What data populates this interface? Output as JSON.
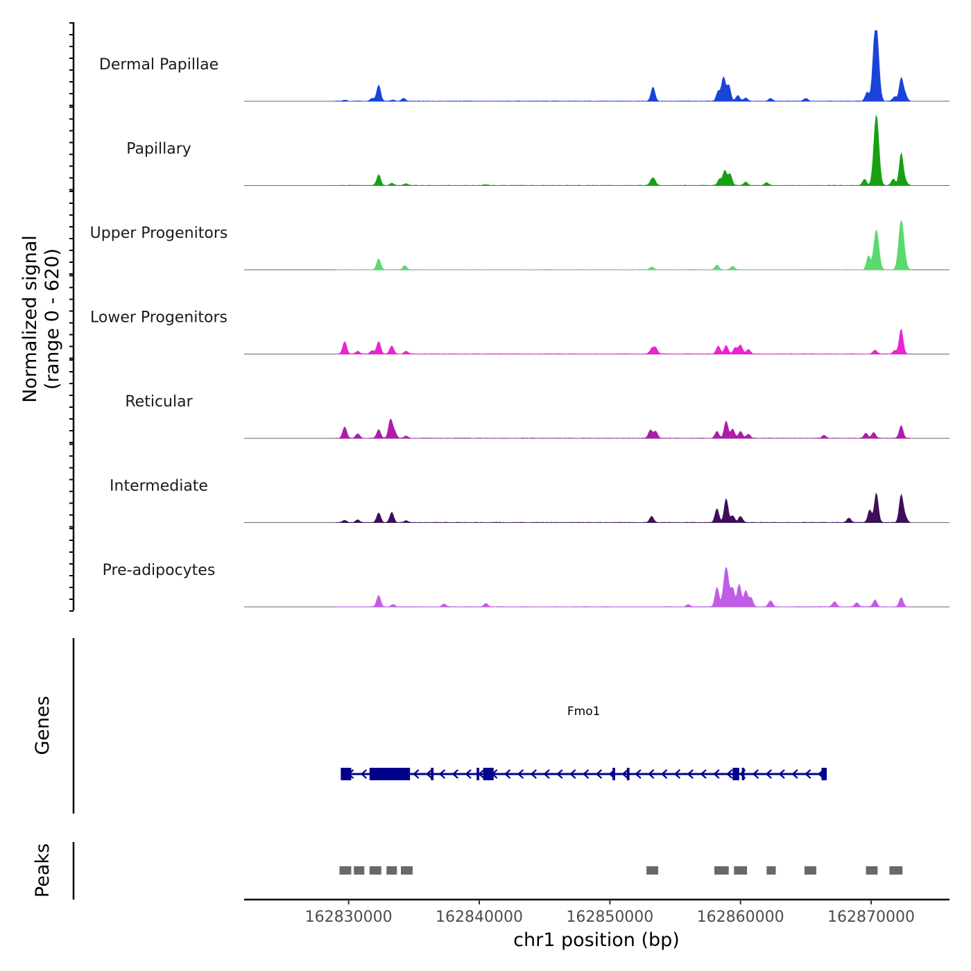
{
  "chart_data": {
    "type": "area",
    "title": "",
    "ylabel_signal": "Normalized signal\n(range 0 - 620)",
    "ylabel_signal_line1": "Normalized signal",
    "ylabel_signal_line2": "(range 0 - 620)",
    "ylabel_genes": "Genes",
    "ylabel_peaks": "Peaks",
    "xlabel": "chr1 position (bp)",
    "xlim": [
      162822000,
      162876000
    ],
    "xticks": [
      162830000,
      162840000,
      162850000,
      162860000,
      162870000
    ],
    "xtick_labels": [
      "162830000",
      "162840000",
      "162850000",
      "162860000",
      "162870000"
    ],
    "signal_range": [
      0,
      620
    ],
    "tracks": [
      {
        "name": "Dermal Papillae",
        "color": "#1a44d8",
        "peaks": [
          [
            162829700,
            8
          ],
          [
            162832300,
            140
          ],
          [
            162831800,
            25
          ],
          [
            162834200,
            25
          ],
          [
            162833400,
            10
          ],
          [
            162853300,
            125
          ],
          [
            162858700,
            210
          ],
          [
            162858300,
            85
          ],
          [
            162859100,
            140
          ],
          [
            162859800,
            50
          ],
          [
            162860400,
            30
          ],
          [
            162862300,
            25
          ],
          [
            162865000,
            25
          ],
          [
            162869700,
            80
          ],
          [
            162870200,
            150
          ],
          [
            162870400,
            620
          ],
          [
            162871800,
            40
          ],
          [
            162872300,
            200
          ],
          [
            162872600,
            60
          ]
        ]
      },
      {
        "name": "Papillary",
        "color": "#17a012",
        "peaks": [
          [
            162832300,
            95
          ],
          [
            162833300,
            20
          ],
          [
            162834400,
            15
          ],
          [
            162840500,
            8
          ],
          [
            162853200,
            45
          ],
          [
            162853400,
            40
          ],
          [
            162858400,
            55
          ],
          [
            162858800,
            130
          ],
          [
            162859200,
            100
          ],
          [
            162860400,
            30
          ],
          [
            162862000,
            25
          ],
          [
            162869500,
            55
          ],
          [
            162870400,
            620
          ],
          [
            162871700,
            55
          ],
          [
            162872300,
            280
          ],
          [
            162872600,
            40
          ]
        ]
      },
      {
        "name": "Upper Progenitors",
        "color": "#5ada6c",
        "peaks": [
          [
            162832300,
            95
          ],
          [
            162834300,
            35
          ],
          [
            162853200,
            25
          ],
          [
            162858200,
            40
          ],
          [
            162859400,
            30
          ],
          [
            162869800,
            120
          ],
          [
            162870400,
            350
          ],
          [
            162872300,
            430
          ],
          [
            162872600,
            40
          ]
        ]
      },
      {
        "name": "Lower Progenitors",
        "color": "#ea24d3",
        "peaks": [
          [
            162829700,
            110
          ],
          [
            162830700,
            25
          ],
          [
            162832300,
            110
          ],
          [
            162831800,
            30
          ],
          [
            162833300,
            70
          ],
          [
            162834400,
            25
          ],
          [
            162853200,
            45
          ],
          [
            162853500,
            55
          ],
          [
            162858300,
            70
          ],
          [
            162858900,
            75
          ],
          [
            162859600,
            55
          ],
          [
            162860000,
            80
          ],
          [
            162860600,
            40
          ],
          [
            162870300,
            35
          ],
          [
            162872300,
            220
          ],
          [
            162871800,
            30
          ]
        ]
      },
      {
        "name": "Reticular",
        "color": "#ad1caa",
        "peaks": [
          [
            162829700,
            100
          ],
          [
            162830700,
            40
          ],
          [
            162832300,
            75
          ],
          [
            162833200,
            160
          ],
          [
            162833500,
            60
          ],
          [
            162834400,
            20
          ],
          [
            162853100,
            70
          ],
          [
            162853500,
            60
          ],
          [
            162858200,
            60
          ],
          [
            162858900,
            150
          ],
          [
            162859400,
            80
          ],
          [
            162860000,
            60
          ],
          [
            162860600,
            35
          ],
          [
            162870200,
            50
          ],
          [
            162869600,
            45
          ],
          [
            162872300,
            110
          ],
          [
            162866400,
            25
          ]
        ]
      },
      {
        "name": "Intermediate",
        "color": "#3d0f5a",
        "peaks": [
          [
            162829700,
            20
          ],
          [
            162830700,
            25
          ],
          [
            162832300,
            85
          ],
          [
            162833300,
            90
          ],
          [
            162834400,
            15
          ],
          [
            162853200,
            55
          ],
          [
            162858200,
            120
          ],
          [
            162858900,
            210
          ],
          [
            162859400,
            60
          ],
          [
            162860000,
            55
          ],
          [
            162868300,
            40
          ],
          [
            162869900,
            110
          ],
          [
            162870400,
            260
          ],
          [
            162872300,
            240
          ],
          [
            162872600,
            50
          ]
        ]
      },
      {
        "name": "Pre-adipocytes",
        "color": "#c05ce6",
        "peaks": [
          [
            162832300,
            100
          ],
          [
            162833400,
            20
          ],
          [
            162837300,
            25
          ],
          [
            162840500,
            30
          ],
          [
            162856000,
            20
          ],
          [
            162858200,
            170
          ],
          [
            162858900,
            350
          ],
          [
            162859400,
            160
          ],
          [
            162859900,
            200
          ],
          [
            162860400,
            140
          ],
          [
            162860800,
            80
          ],
          [
            162862300,
            55
          ],
          [
            162867200,
            45
          ],
          [
            162868900,
            35
          ],
          [
            162870300,
            60
          ],
          [
            162872300,
            80
          ]
        ]
      }
    ],
    "gene": {
      "name": "Fmo1",
      "strand": "-",
      "color": "#00008b",
      "start": 162829400,
      "end": 162866600,
      "exons": [
        [
          162829400,
          162830200
        ],
        [
          162831600,
          162834700
        ],
        [
          162836300,
          162836500
        ],
        [
          162839800,
          162840000
        ],
        [
          162840300,
          162841100
        ],
        [
          162850200,
          162850400
        ],
        [
          162851300,
          162851500
        ],
        [
          162859400,
          162859900
        ],
        [
          162860100,
          162860300
        ],
        [
          162866200,
          162866600
        ]
      ]
    },
    "peaks_track": {
      "color": "#696969",
      "regions": [
        [
          162829300,
          162830200
        ],
        [
          162830400,
          162831200
        ],
        [
          162831600,
          162832500
        ],
        [
          162832900,
          162833700
        ],
        [
          162834000,
          162834900
        ],
        [
          162852800,
          162853700
        ],
        [
          162858000,
          162859100
        ],
        [
          162859500,
          162860500
        ],
        [
          162862000,
          162862700
        ],
        [
          162864900,
          162865800
        ],
        [
          162869600,
          162870500
        ],
        [
          162871400,
          162872400
        ]
      ]
    }
  }
}
